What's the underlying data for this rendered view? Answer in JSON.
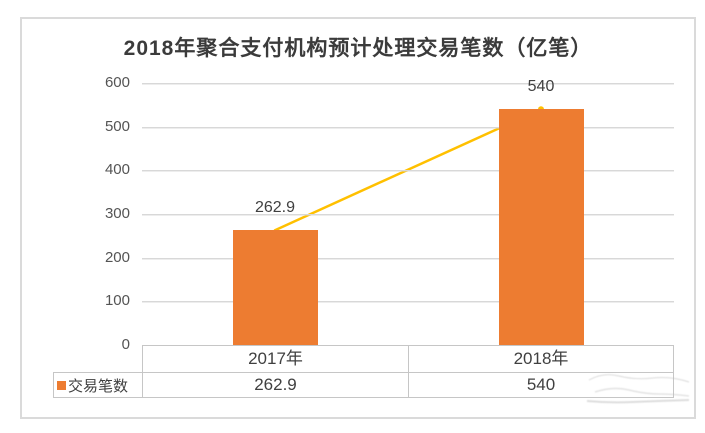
{
  "chart_data": {
    "type": "bar",
    "title": "2018年聚合支付机构预计处理交易笔数（亿笔）",
    "categories": [
      "2017年",
      "2018年"
    ],
    "series": [
      {
        "name": "交易笔数",
        "values": [
          262.9,
          540
        ]
      }
    ],
    "data_labels": [
      "262.9",
      "540"
    ],
    "xlabel": "",
    "ylabel": "",
    "ylim": [
      0,
      600
    ],
    "y_ticks": [
      0,
      100,
      200,
      300,
      400,
      500,
      600
    ],
    "grid": true,
    "legend_position": "table-bottom-left",
    "overlay": "line-connecting-bar-tops"
  },
  "colors": {
    "bar_fill": "#ED7C31",
    "trend_line": "#FFC000",
    "gridline": "#D8D8D8",
    "title_text": "#3B3B3B",
    "axis_text": "#545454",
    "value_text": "#404040",
    "table_border": "#C6C6C6",
    "frame_border": "#DADADA"
  },
  "table": {
    "column_headers": [
      "2017年",
      "2018年"
    ],
    "row_label": "交易笔数",
    "row_values": [
      "262.9",
      "540"
    ]
  }
}
